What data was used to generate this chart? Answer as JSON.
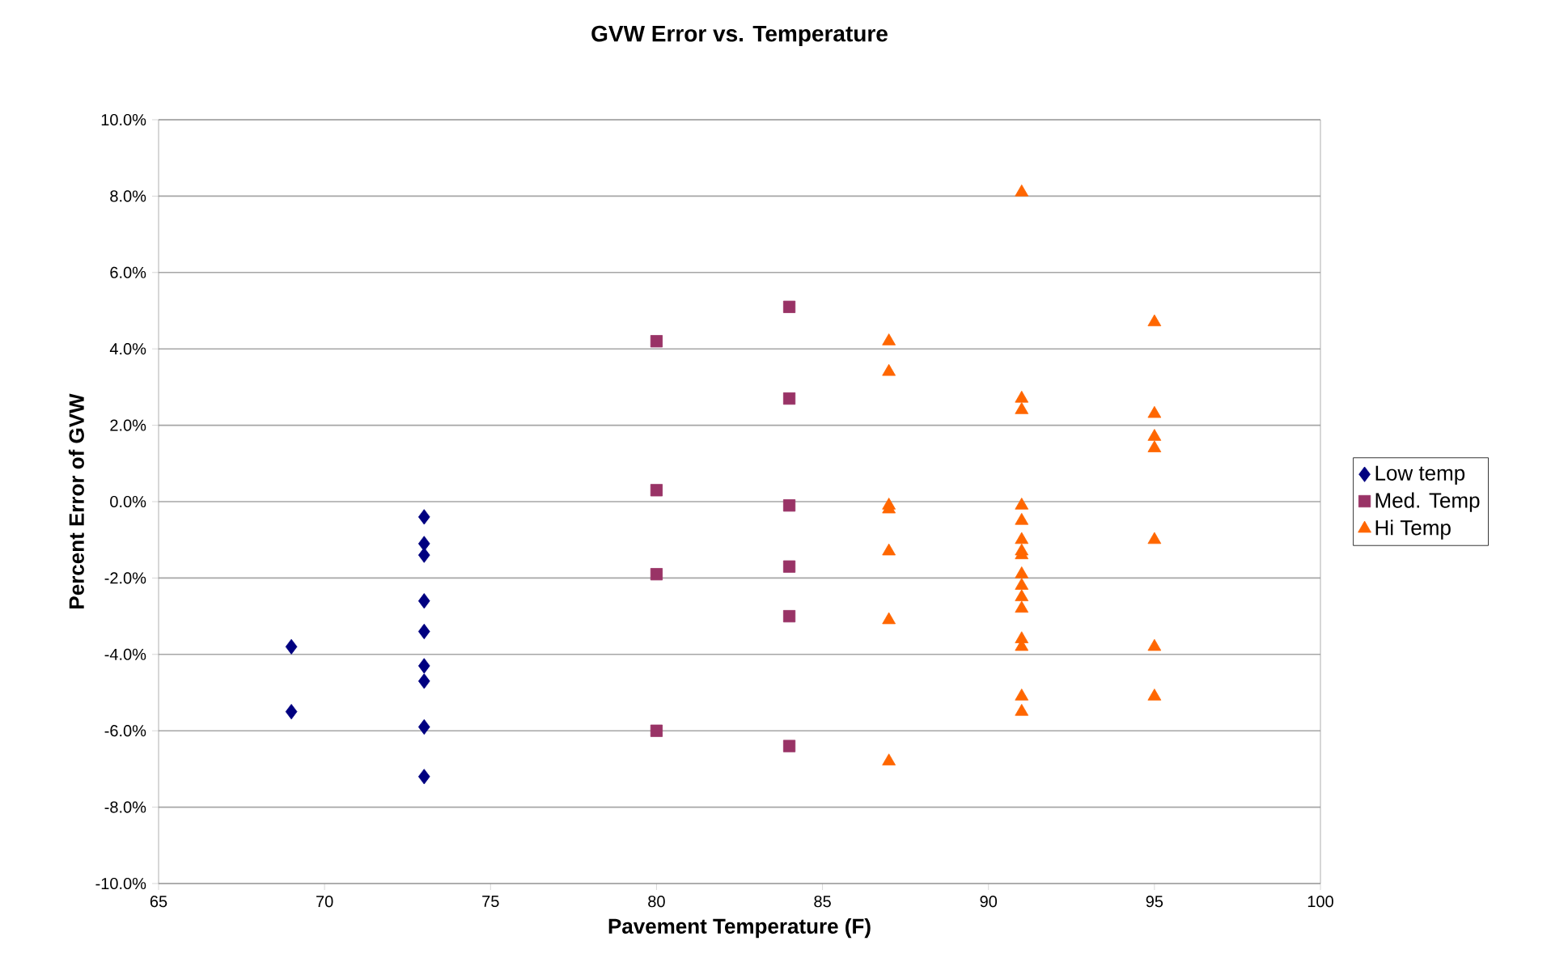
{
  "chart_data": {
    "type": "scatter",
    "title": "GVW Error vs. Temperature",
    "xlabel": "Pavement Temperature (F)",
    "ylabel": "Percent Error of GVW",
    "series": [
      {
        "name": "Low temp",
        "color": "#000080",
        "marker": "diamond",
        "x": [
          69,
          69,
          73,
          73,
          73,
          73,
          73,
          73,
          73,
          73,
          73
        ],
        "values": [
          -3.8,
          -5.5,
          -0.4,
          -1.1,
          -1.4,
          -2.6,
          -3.4,
          -4.3,
          -4.7,
          -5.9,
          -7.2
        ]
      },
      {
        "name": "Med. Temp",
        "color": "#993366",
        "marker": "square",
        "x": [
          80,
          80,
          80,
          80,
          84,
          84,
          84,
          84,
          84,
          84
        ],
        "values": [
          4.2,
          0.3,
          -1.9,
          -6.0,
          5.1,
          2.7,
          -0.1,
          -1.7,
          -3.0,
          -6.4
        ]
      },
      {
        "name": "Hi Temp",
        "color": "#ff6600",
        "marker": "triangle",
        "x": [
          87,
          87,
          87,
          87,
          87,
          87,
          87,
          91,
          91,
          91,
          91,
          91,
          91,
          91,
          91,
          91,
          91,
          91,
          91,
          91,
          91,
          91,
          91,
          95,
          95,
          95,
          95,
          95,
          95,
          95
        ],
        "values": [
          4.2,
          3.4,
          -0.1,
          -0.2,
          -1.3,
          -3.1,
          -6.8,
          8.1,
          2.7,
          2.4,
          -0.1,
          -0.5,
          -1.0,
          -1.3,
          -1.4,
          -1.9,
          -2.2,
          -2.5,
          -2.8,
          -3.6,
          -3.8,
          -5.1,
          -5.5,
          4.7,
          2.3,
          1.7,
          1.4,
          -1.0,
          -3.8,
          -5.1
        ]
      }
    ],
    "xlim": [
      65,
      100
    ],
    "xticks": [
      65,
      70,
      75,
      80,
      85,
      90,
      95,
      100
    ],
    "ylim": [
      -10,
      10
    ],
    "yticks": [
      {
        "value": -10,
        "label": "-10.0%"
      },
      {
        "value": -8,
        "label": "-8.0%"
      },
      {
        "value": -6,
        "label": "-6.0%"
      },
      {
        "value": -4,
        "label": "-4.0%"
      },
      {
        "value": -2,
        "label": "-2.0%"
      },
      {
        "value": 0,
        "label": "0.0%"
      },
      {
        "value": 2,
        "label": "2.0%"
      },
      {
        "value": 4,
        "label": "4.0%"
      },
      {
        "value": 6,
        "label": "6.0%"
      },
      {
        "value": 8,
        "label": "8.0%"
      },
      {
        "value": 10,
        "label": "10.0%"
      }
    ],
    "grid": "y",
    "legend": "right"
  }
}
